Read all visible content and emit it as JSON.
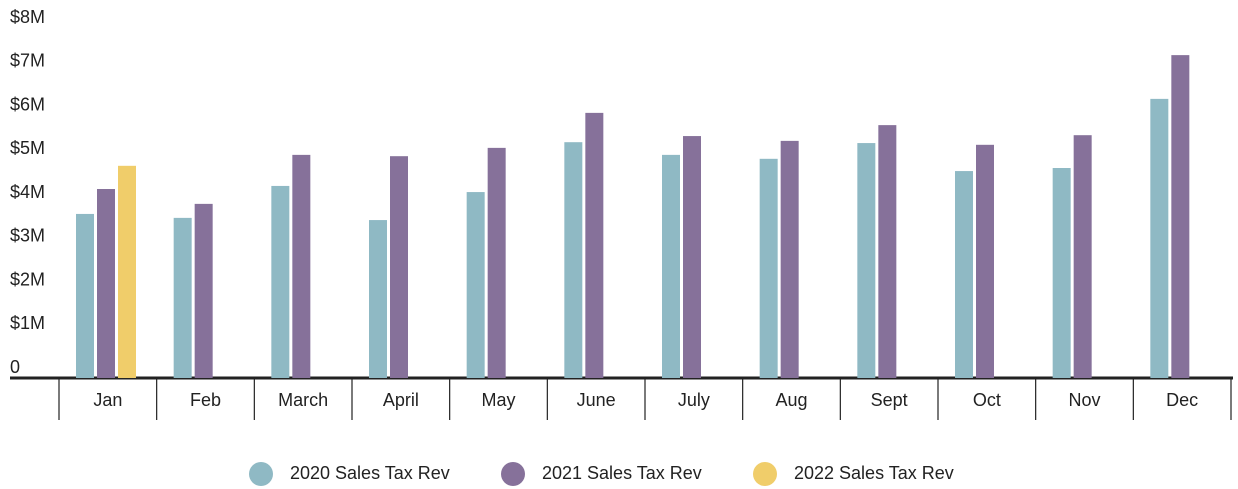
{
  "chart_data": {
    "type": "bar",
    "categories": [
      "Jan",
      "Feb",
      "March",
      "April",
      "May",
      "June",
      "July",
      "Aug",
      "Sept",
      "Oct",
      "Nov",
      "Dec"
    ],
    "series": [
      {
        "name": "2020 Sales Tax Rev",
        "color": "#8fb9c4",
        "values": [
          3.75,
          3.66,
          4.39,
          3.61,
          4.25,
          5.39,
          5.1,
          5.01,
          5.37,
          4.73,
          4.8,
          6.38
        ]
      },
      {
        "name": "2021 Sales Tax Rev",
        "color": "#86719a",
        "values": [
          4.32,
          3.98,
          5.1,
          5.07,
          5.26,
          6.06,
          5.53,
          5.42,
          5.78,
          5.33,
          5.55,
          7.38
        ]
      },
      {
        "name": "2022 Sales Tax Rev",
        "color": "#f0cd6a",
        "values": [
          4.85,
          null,
          null,
          null,
          null,
          null,
          null,
          null,
          null,
          null,
          null,
          null
        ]
      }
    ],
    "ylim": [
      0,
      8
    ],
    "yticks": [
      0,
      {
        "value": 1,
        "label": "$1M"
      },
      {
        "value": 2,
        "label": "$2M"
      },
      {
        "value": 3,
        "label": "$3M"
      },
      {
        "value": 4,
        "label": "$4M"
      },
      {
        "value": 5,
        "label": "$5M"
      },
      {
        "value": 6,
        "label": "$6M"
      },
      {
        "value": 7,
        "label": "$7M"
      },
      {
        "value": 8,
        "label": "$8M"
      }
    ],
    "grid": false
  }
}
